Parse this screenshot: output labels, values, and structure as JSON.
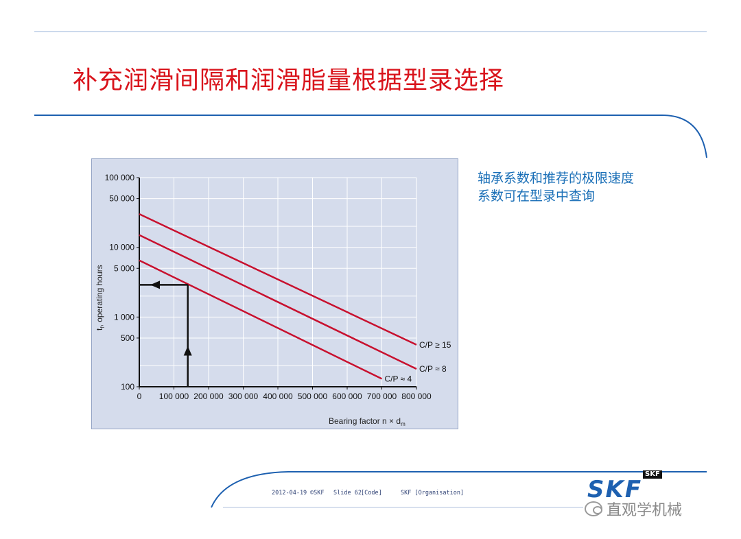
{
  "slide": {
    "title": "补充润滑间隔和润滑脂量根据型录选择",
    "note_lines": [
      "轴承系数和推荐的极限速度",
      "系数可在型录中查询"
    ]
  },
  "footer": {
    "date": "2012-04-19",
    "copyright": "©SKF",
    "slide_number": "Slide 62",
    "code": "[Code]",
    "organisation": "SKF [Organisation]",
    "logo_text": "SKF",
    "logo_small": "SKF"
  },
  "watermark": {
    "text": "直观学机械",
    "icon": "wechat-icon"
  },
  "colors": {
    "title": "#d9141c",
    "note": "#1a6fb7",
    "series": "#c8102e",
    "chart_bg": "#d5dcec"
  },
  "chart_data": {
    "type": "line",
    "ylabel_main": "t",
    "ylabel_sub": "f",
    "ylabel_rest": ", operating hours",
    "xlabel_main": "Bearing factor n × d",
    "xlabel_sub": "m",
    "yscale": "log",
    "ylim": [
      100,
      100000
    ],
    "xlim": [
      0,
      800000
    ],
    "x_ticks": [
      {
        "value": 0,
        "label": "0"
      },
      {
        "value": 100000,
        "label": "100 000"
      },
      {
        "value": 200000,
        "label": "200 000"
      },
      {
        "value": 300000,
        "label": "300 000"
      },
      {
        "value": 400000,
        "label": "400 000"
      },
      {
        "value": 500000,
        "label": "500 000"
      },
      {
        "value": 600000,
        "label": "600 000"
      },
      {
        "value": 700000,
        "label": "700 000"
      },
      {
        "value": 800000,
        "label": "800 000"
      }
    ],
    "y_ticks": [
      {
        "value": 100,
        "label": "100"
      },
      {
        "value": 500,
        "label": "500"
      },
      {
        "value": 1000,
        "label": "1 000"
      },
      {
        "value": 5000,
        "label": "5 000"
      },
      {
        "value": 10000,
        "label": "10 000"
      },
      {
        "value": 50000,
        "label": "50 000"
      },
      {
        "value": 100000,
        "label": "100 000"
      }
    ],
    "grid": true,
    "series": [
      {
        "name": "C/P ≥ 15",
        "x": [
          0,
          800000
        ],
        "y": [
          30000,
          400
        ]
      },
      {
        "name": "C/P ≈ 8",
        "x": [
          0,
          800000
        ],
        "y": [
          15000,
          180
        ]
      },
      {
        "name": "C/P ≈ 4",
        "x": [
          0,
          700000
        ],
        "y": [
          6500,
          130
        ]
      }
    ],
    "example_path": {
      "x": 140000,
      "y": 2900
    }
  }
}
